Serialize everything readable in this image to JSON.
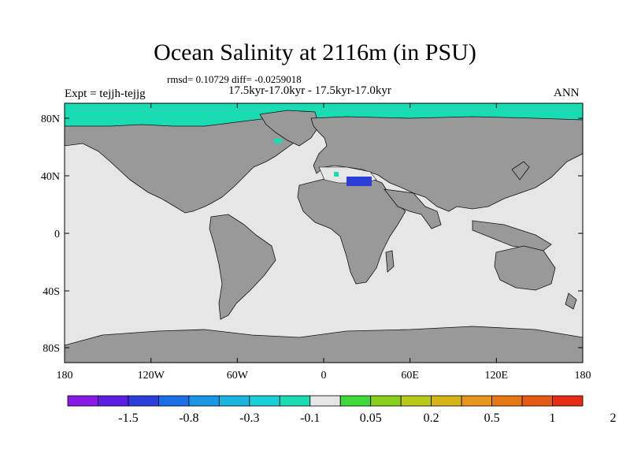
{
  "title": "Ocean Salinity at 2116m (in PSU)",
  "stats_line": "rmsd= 0.10729 diff= -0.0259018",
  "period_line": "17.5kyr-17.0kyr - 17.5kyr-17.0kyr",
  "experiment_label": "Expt = tejjh-tejjg",
  "season_label": "ANN",
  "lat_labels": [
    "80N",
    "40N",
    "0",
    "40S",
    "80S"
  ],
  "lon_labels": [
    "180",
    "120W",
    "60W",
    "0",
    "60E",
    "120E",
    "180"
  ],
  "colorbar": {
    "colors": [
      "#8a19e6",
      "#5a1fe0",
      "#2a3fd9",
      "#1a6ee6",
      "#1a96e6",
      "#19b4e0",
      "#17cfd4",
      "#19dcb4",
      "#e6e6e6",
      "#3fd93a",
      "#88cf1a",
      "#b8c917",
      "#d6b417",
      "#e69619",
      "#e67814",
      "#e65a14",
      "#e62814"
    ],
    "labels": [
      "-1.5",
      "-0.8",
      "-0.3",
      "-0.1",
      "0.05",
      "0.2",
      "0.5",
      "1",
      "2"
    ]
  },
  "colors": {
    "ocean_near_zero": "#e6e6e6",
    "land_mask": "#999999",
    "arctic_anomaly": "#19dcb4",
    "mediterranean_anomaly": "#2a3fd9"
  }
}
